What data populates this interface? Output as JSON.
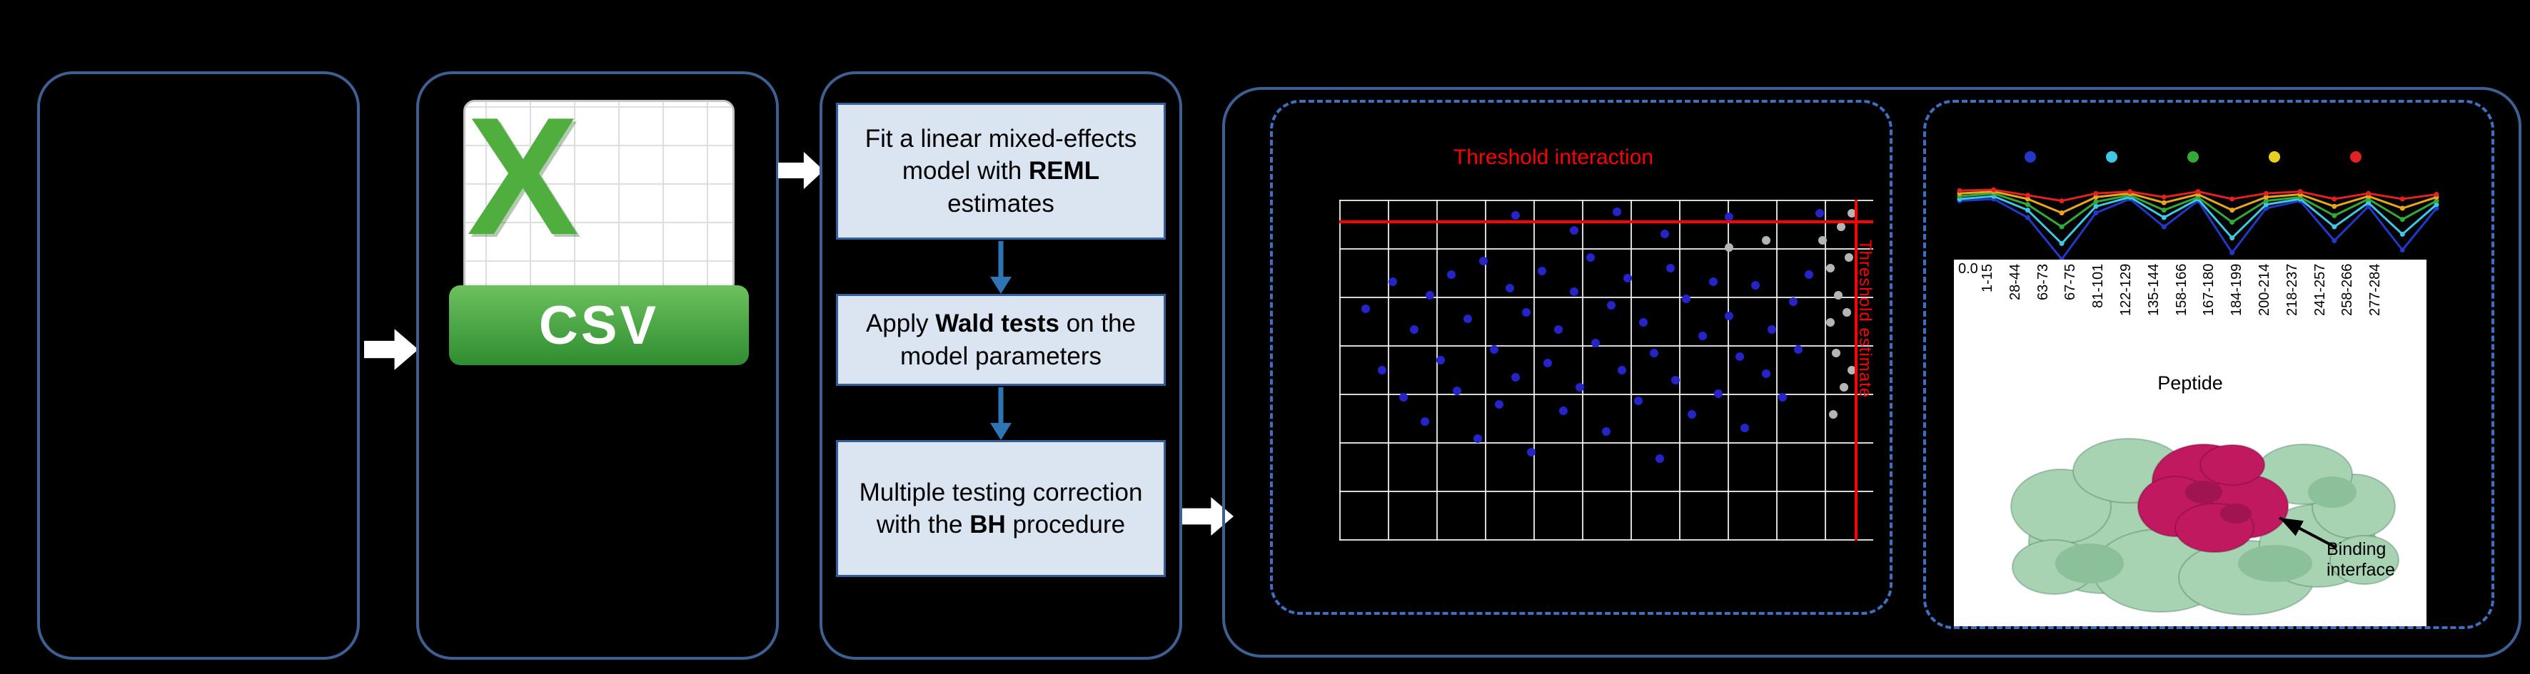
{
  "colors": {
    "background": "#000000",
    "panel_border": "#3d5f91",
    "dashed_border": "#3f6fc0",
    "step_fill": "#dbe5f1",
    "step_border": "#31609a",
    "flow_arrow_blue": "#2e75b6",
    "threshold_red": "#ff0000",
    "csv_green": "#4fae3d"
  },
  "panels": {
    "csv_icon": {
      "letter": "X",
      "label": "CSV"
    },
    "model_steps": {
      "step1": {
        "pre": "Fit a linear mixed-effects model with ",
        "bold": "REML",
        "post": " estimates"
      },
      "step2": {
        "pre": "Apply ",
        "bold": "Wald tests",
        "post": " on the model parameters"
      },
      "step3": {
        "pre": "Multiple testing correction with the ",
        "bold": "BH",
        "post": " procedure"
      }
    }
  },
  "structure_annotation": "Binding interface",
  "chart_data": [
    {
      "id": "threshold-scatter",
      "type": "scatter",
      "title": "Threshold interaction",
      "right_axis_label": "Threshold estimate",
      "grid": true,
      "thresholds": {
        "interaction_line_y": 0.06,
        "estimate_line_x": 0.965,
        "color": "#ff0000"
      },
      "series": [
        {
          "name": "significant-peptides",
          "color": "#2424c8",
          "points": [
            [
              0.05,
              0.32
            ],
            [
              0.08,
              0.5
            ],
            [
              0.1,
              0.24
            ],
            [
              0.12,
              0.58
            ],
            [
              0.14,
              0.38
            ],
            [
              0.16,
              0.65
            ],
            [
              0.17,
              0.28
            ],
            [
              0.19,
              0.47
            ],
            [
              0.21,
              0.22
            ],
            [
              0.22,
              0.56
            ],
            [
              0.24,
              0.35
            ],
            [
              0.26,
              0.7
            ],
            [
              0.27,
              0.18
            ],
            [
              0.29,
              0.44
            ],
            [
              0.3,
              0.6
            ],
            [
              0.32,
              0.26
            ],
            [
              0.33,
              0.52
            ],
            [
              0.35,
              0.33
            ],
            [
              0.36,
              0.74
            ],
            [
              0.38,
              0.21
            ],
            [
              0.39,
              0.48
            ],
            [
              0.41,
              0.38
            ],
            [
              0.42,
              0.62
            ],
            [
              0.44,
              0.27
            ],
            [
              0.45,
              0.55
            ],
            [
              0.47,
              0.17
            ],
            [
              0.48,
              0.42
            ],
            [
              0.5,
              0.68
            ],
            [
              0.51,
              0.31
            ],
            [
              0.53,
              0.5
            ],
            [
              0.54,
              0.23
            ],
            [
              0.56,
              0.59
            ],
            [
              0.57,
              0.36
            ],
            [
              0.59,
              0.45
            ],
            [
              0.6,
              0.76
            ],
            [
              0.62,
              0.2
            ],
            [
              0.63,
              0.53
            ],
            [
              0.65,
              0.29
            ],
            [
              0.66,
              0.63
            ],
            [
              0.68,
              0.4
            ],
            [
              0.7,
              0.24
            ],
            [
              0.71,
              0.57
            ],
            [
              0.73,
              0.34
            ],
            [
              0.75,
              0.46
            ],
            [
              0.76,
              0.67
            ],
            [
              0.78,
              0.25
            ],
            [
              0.8,
              0.51
            ],
            [
              0.81,
              0.38
            ],
            [
              0.83,
              0.58
            ],
            [
              0.85,
              0.3
            ],
            [
              0.86,
              0.44
            ],
            [
              0.88,
              0.22
            ],
            [
              0.33,
              0.045
            ],
            [
              0.52,
              0.035
            ],
            [
              0.73,
              0.05
            ],
            [
              0.9,
              0.04
            ],
            [
              0.44,
              0.09
            ],
            [
              0.61,
              0.1
            ]
          ]
        },
        {
          "name": "non-significant-peptides",
          "color": "#b5b5b5",
          "points": [
            [
              0.905,
              0.12
            ],
            [
              0.92,
              0.2
            ],
            [
              0.935,
              0.28
            ],
            [
              0.92,
              0.36
            ],
            [
              0.93,
              0.45
            ],
            [
              0.945,
              0.55
            ],
            [
              0.925,
              0.63
            ],
            [
              0.94,
              0.08
            ],
            [
              0.955,
              0.17
            ],
            [
              0.95,
              0.33
            ],
            [
              0.96,
              0.5
            ],
            [
              0.73,
              0.14
            ],
            [
              0.8,
              0.12
            ],
            [
              0.96,
              0.04
            ]
          ]
        }
      ]
    },
    {
      "id": "peptide-uptake-profile",
      "type": "line",
      "categories": [
        "1-15",
        "28-44",
        "63-73",
        "67-75",
        "81-101",
        "122-129",
        "135-144",
        "158-166",
        "167-180",
        "184-199",
        "200-214",
        "218-237",
        "241-257",
        "258-266",
        "277-284"
      ],
      "xlabel": "Peptide",
      "visible_ytick": "0.0",
      "legend_dot_colors": [
        "#2438c8",
        "#3fc8e6",
        "#33a939",
        "#e8d020",
        "#e02222"
      ],
      "series": [
        {
          "name": "series-blue",
          "color": "#2438c8",
          "values": [
            0.32,
            0.3,
            0.5,
            0.95,
            0.45,
            0.3,
            0.6,
            0.32,
            0.88,
            0.4,
            0.32,
            0.75,
            0.38,
            0.85,
            0.4
          ]
        },
        {
          "name": "series-cyan",
          "color": "#3fc8e6",
          "values": [
            0.3,
            0.27,
            0.42,
            0.78,
            0.38,
            0.28,
            0.5,
            0.3,
            0.72,
            0.36,
            0.3,
            0.6,
            0.34,
            0.68,
            0.36
          ]
        },
        {
          "name": "series-green",
          "color": "#33a939",
          "values": [
            0.27,
            0.24,
            0.36,
            0.6,
            0.33,
            0.26,
            0.42,
            0.28,
            0.55,
            0.32,
            0.28,
            0.48,
            0.3,
            0.52,
            0.32
          ]
        },
        {
          "name": "series-amber",
          "color": "#e8a51f",
          "values": [
            0.24,
            0.22,
            0.3,
            0.45,
            0.28,
            0.24,
            0.34,
            0.25,
            0.42,
            0.28,
            0.25,
            0.38,
            0.27,
            0.4,
            0.28
          ]
        },
        {
          "name": "series-red",
          "color": "#e02222",
          "values": [
            0.21,
            0.2,
            0.26,
            0.32,
            0.24,
            0.22,
            0.28,
            0.22,
            0.3,
            0.24,
            0.22,
            0.3,
            0.24,
            0.3,
            0.25
          ]
        }
      ]
    }
  ]
}
